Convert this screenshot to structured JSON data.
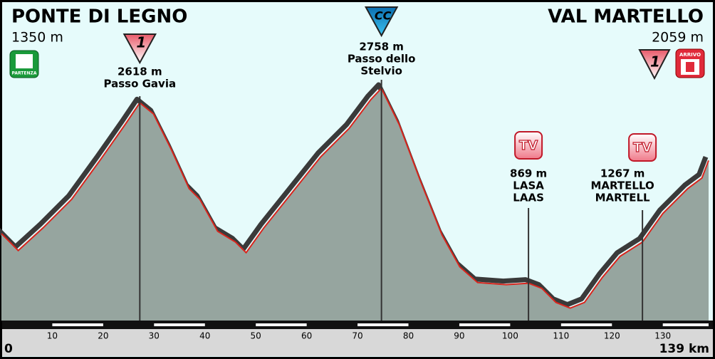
{
  "start": {
    "name": "PONTE DI LEGNO",
    "elevation": "1350 m",
    "badge": "PARTENZA"
  },
  "finish": {
    "name": "VAL MARTELLO",
    "elevation": "2059 m",
    "badge": "ARRIVO",
    "category": "1"
  },
  "chart_data": {
    "type": "area",
    "x": [
      0,
      3.3,
      8.2,
      13.8,
      19.4,
      24.3,
      27.2,
      29.9,
      33.4,
      36.9,
      39,
      42.5,
      46,
      48.1,
      51.6,
      57.2,
      62.8,
      68.4,
      72.6,
      74.7,
      78.2,
      82.4,
      86.6,
      90.1,
      93.6,
      99.2,
      103.6,
      106.2,
      109,
      111.8,
      114.6,
      118.1,
      121.6,
      126,
      130,
      134.9,
      137.7,
      139
    ],
    "values": [
      1350,
      1186,
      1406,
      1682,
      2062,
      2406,
      2618,
      2510,
      2165,
      1786,
      1682,
      1372,
      1268,
      1165,
      1406,
      1751,
      2096,
      2372,
      2648,
      2758,
      2406,
      1855,
      1337,
      1027,
      875,
      855,
      869,
      820,
      682,
      627,
      682,
      924,
      1130,
      1267,
      1544,
      1786,
      1889,
      2059
    ],
    "color": "#96a59f",
    "line_color": "#d9251d",
    "shadow_color": "#3a3a3a",
    "xlim": [
      0,
      139
    ],
    "ylim": [
      500,
      3000
    ],
    "xticks": [
      0,
      10,
      20,
      30,
      40,
      50,
      60,
      70,
      80,
      90,
      100,
      110,
      120,
      130,
      {
        "value": 139,
        "label": "139 km"
      }
    ],
    "annotations": [
      {
        "x": 27.2,
        "badge": "1",
        "elevation": "2618 m",
        "lines": [
          "Passo Gavia"
        ]
      },
      {
        "x": 74.7,
        "badge": "CC",
        "elevation": "2758 m",
        "lines": [
          "Passo dello",
          "Stelvio"
        ]
      },
      {
        "x": 103.6,
        "badge": "TV",
        "elevation": "869 m",
        "lines": [
          "LASA",
          "LAAS"
        ]
      },
      {
        "x": 126,
        "badge": "TV",
        "elevation": "1267 m",
        "lines": [
          "MARTELLO",
          "MARTELL"
        ]
      }
    ]
  }
}
